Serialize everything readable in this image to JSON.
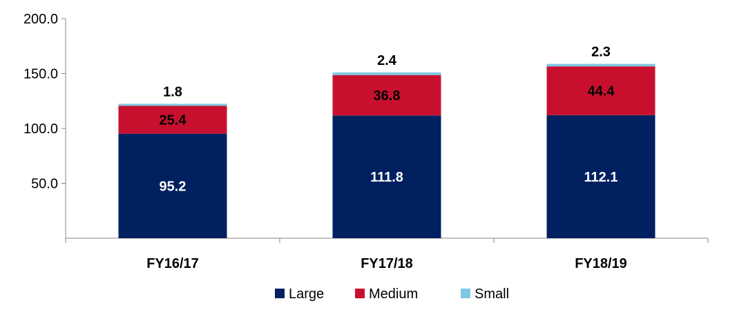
{
  "chart_data": {
    "type": "bar",
    "stacked": true,
    "categories": [
      "FY16/17",
      "FY17/18",
      "FY18/19"
    ],
    "series": [
      {
        "name": "Large",
        "values": [
          95.2,
          111.8,
          112.1
        ],
        "color": "#002060",
        "labels": [
          "95.2",
          "111.8",
          "112.1"
        ]
      },
      {
        "name": "Medium",
        "values": [
          25.4,
          36.8,
          44.4
        ],
        "color": "#C8102E",
        "labels": [
          "25.4",
          "36.8",
          "44.4"
        ]
      },
      {
        "name": "Small",
        "values": [
          1.8,
          2.4,
          2.3
        ],
        "color": "#7EC8E3",
        "labels": [
          "1.8",
          "2.4",
          "2.3"
        ]
      }
    ],
    "yticks": [
      "50.0",
      "100.0",
      "150.0",
      "200.0"
    ],
    "ytick_values": [
      50,
      100,
      150,
      200
    ],
    "ylim": [
      0,
      200
    ],
    "grid": false,
    "legend": "bottom-center"
  }
}
